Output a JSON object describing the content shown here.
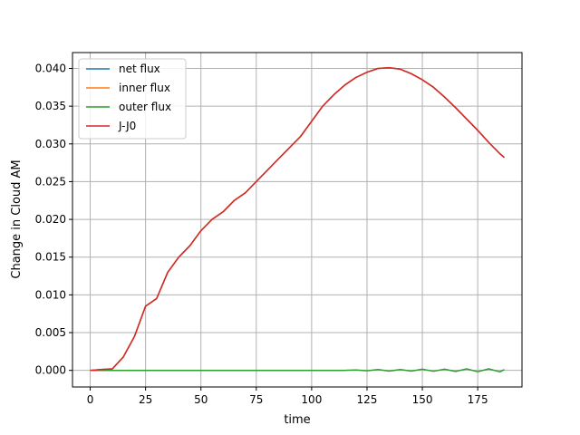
{
  "chart_data": {
    "type": "line",
    "title": "",
    "xlabel": "time",
    "ylabel": "Change in Cloud AM",
    "xlim": [
      -8,
      195
    ],
    "ylim": [
      -0.0022,
      0.0421
    ],
    "x_ticks": [
      0,
      25,
      50,
      75,
      100,
      125,
      150,
      175
    ],
    "x_tick_labels": [
      "0",
      "25",
      "50",
      "75",
      "100",
      "125",
      "150",
      "175"
    ],
    "y_ticks": [
      0.0,
      0.005,
      0.01,
      0.015,
      0.02,
      0.025,
      0.03,
      0.035,
      0.04
    ],
    "y_tick_labels": [
      "0.000",
      "0.005",
      "0.010",
      "0.015",
      "0.020",
      "0.025",
      "0.030",
      "0.035",
      "0.040"
    ],
    "grid": true,
    "legend_position": "upper-left",
    "series": [
      {
        "name": "net flux",
        "color": "#1f77b4",
        "x": [
          0,
          5,
          10,
          15,
          20,
          25,
          30,
          35,
          40,
          45,
          50,
          55,
          60,
          65,
          70,
          75,
          80,
          85,
          90,
          95,
          100,
          105,
          110,
          115,
          120,
          125,
          130,
          135,
          140,
          145,
          150,
          155,
          160,
          165,
          170,
          175,
          180,
          185,
          187
        ],
        "y": [
          0.0,
          0.0001,
          0.0002,
          0.0018,
          0.0045,
          0.0085,
          0.0095,
          0.013,
          0.015,
          0.0165,
          0.0185,
          0.02,
          0.021,
          0.0225,
          0.0235,
          0.025,
          0.0265,
          0.028,
          0.0295,
          0.031,
          0.033,
          0.035,
          0.0365,
          0.0378,
          0.0388,
          0.0395,
          0.04,
          0.0401,
          0.0399,
          0.0393,
          0.0385,
          0.0375,
          0.0362,
          0.0348,
          0.0333,
          0.0318,
          0.0302,
          0.0287,
          0.0282
        ]
      },
      {
        "name": "inner flux",
        "color": "#ff7f0e",
        "x": [
          0,
          5,
          10,
          15,
          20,
          25,
          30,
          35,
          40,
          45,
          50,
          55,
          60,
          65,
          70,
          75,
          80,
          85,
          90,
          95,
          100,
          105,
          110,
          115,
          120,
          125,
          130,
          135,
          140,
          145,
          150,
          155,
          160,
          165,
          170,
          175,
          180,
          185,
          187
        ],
        "y": [
          0.0,
          0.0001,
          0.0002,
          0.0018,
          0.0045,
          0.0085,
          0.0095,
          0.013,
          0.015,
          0.0165,
          0.0185,
          0.02,
          0.021,
          0.0225,
          0.0235,
          0.025,
          0.0265,
          0.028,
          0.0295,
          0.031,
          0.033,
          0.035,
          0.0365,
          0.0378,
          0.0388,
          0.0395,
          0.04,
          0.0401,
          0.0399,
          0.0393,
          0.0385,
          0.0375,
          0.0362,
          0.0348,
          0.0333,
          0.0318,
          0.0302,
          0.0287,
          0.0282
        ]
      },
      {
        "name": "outer flux",
        "color": "#2ca02c",
        "x": [
          0,
          20,
          40,
          60,
          80,
          100,
          115,
          120,
          125,
          130,
          135,
          140,
          145,
          150,
          155,
          160,
          165,
          170,
          175,
          180,
          185,
          187
        ],
        "y": [
          0.0,
          0.0,
          0.0,
          0.0,
          0.0,
          0.0,
          0.0,
          5e-05,
          -5e-05,
          0.0001,
          -0.0001,
          0.00012,
          -0.0001,
          0.00015,
          -0.00012,
          0.00015,
          -0.00015,
          0.0002,
          -0.00018,
          0.0002,
          -0.0002,
          0.0001
        ]
      },
      {
        "name": "J-J0",
        "color": "#d62728",
        "x": [
          0,
          5,
          10,
          15,
          20,
          25,
          30,
          35,
          40,
          45,
          50,
          55,
          60,
          65,
          70,
          75,
          80,
          85,
          90,
          95,
          100,
          105,
          110,
          115,
          120,
          125,
          130,
          135,
          140,
          145,
          150,
          155,
          160,
          165,
          170,
          175,
          180,
          185,
          187
        ],
        "y": [
          0.0,
          0.0001,
          0.0002,
          0.0018,
          0.0045,
          0.0085,
          0.0095,
          0.013,
          0.015,
          0.0165,
          0.0185,
          0.02,
          0.021,
          0.0225,
          0.0235,
          0.025,
          0.0265,
          0.028,
          0.0295,
          0.031,
          0.033,
          0.035,
          0.0365,
          0.0378,
          0.0388,
          0.0395,
          0.04,
          0.0401,
          0.0399,
          0.0393,
          0.0385,
          0.0375,
          0.0362,
          0.0348,
          0.0333,
          0.0318,
          0.0302,
          0.0287,
          0.0282
        ]
      }
    ]
  }
}
